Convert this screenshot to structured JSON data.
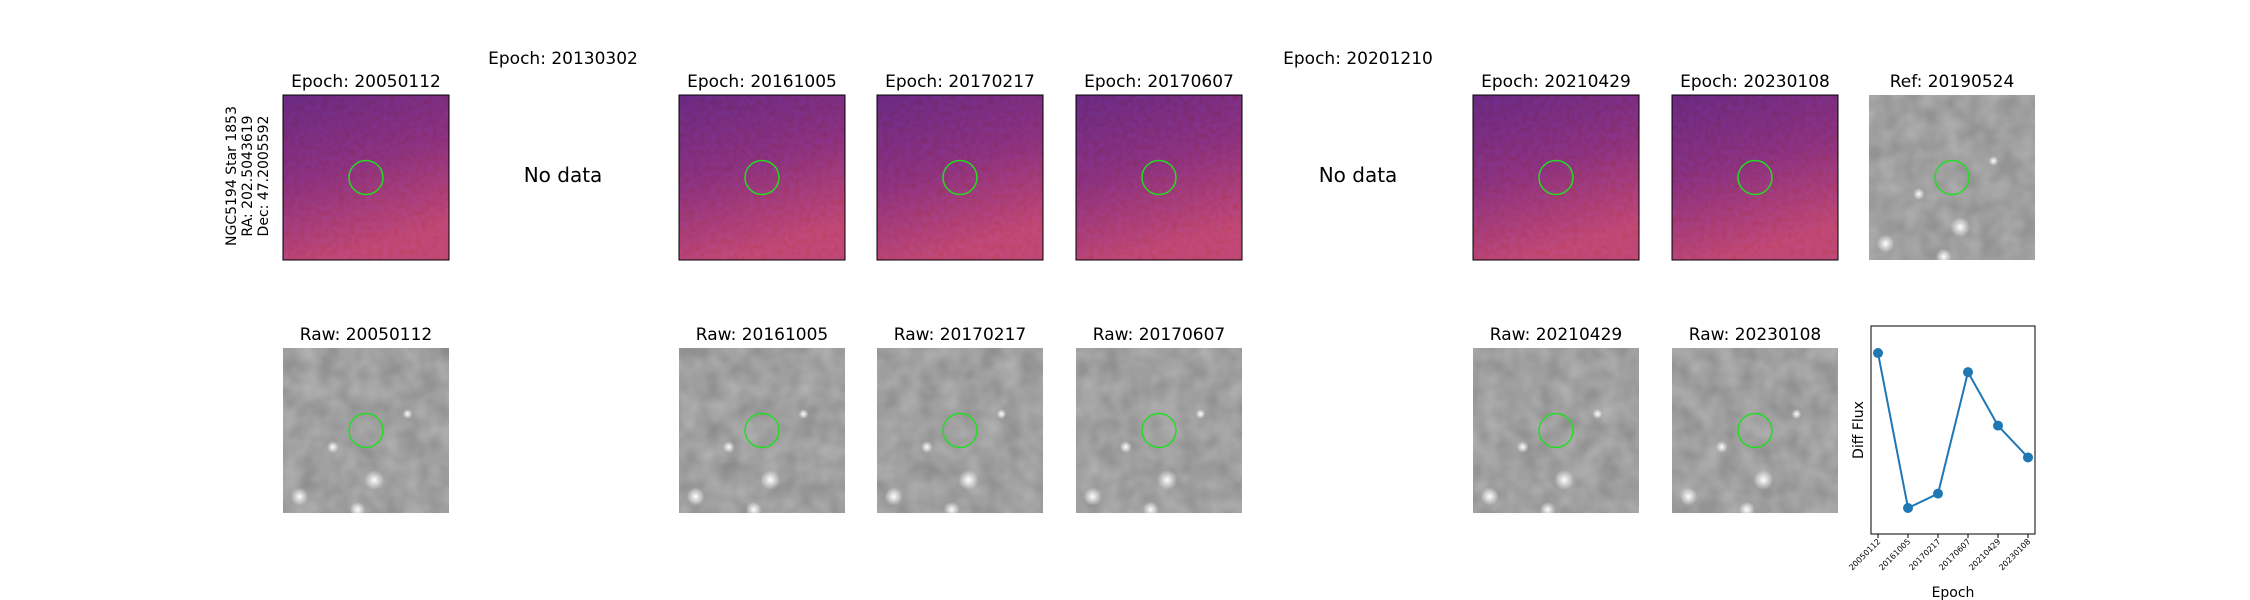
{
  "header": {
    "star_info": [
      "NGC5194 Star 1853",
      "RA: 202.5043619",
      "Dec: 47.2005592"
    ]
  },
  "columns": [
    {
      "diff": "Epoch: 20050112",
      "raw": "Raw: 20050112"
    },
    {
      "diff": "Epoch: 20130302",
      "nodata": "No data"
    },
    {
      "diff": "Epoch: 20161005",
      "raw": "Raw: 20161005"
    },
    {
      "diff": "Epoch: 20170217",
      "raw": "Raw: 20170217"
    },
    {
      "diff": "Epoch: 20170607",
      "raw": "Raw: 20170607"
    },
    {
      "diff": "Epoch: 20201210",
      "nodata": "No data"
    },
    {
      "diff": "Epoch: 20210429",
      "raw": "Raw: 20210429"
    },
    {
      "diff": "Epoch: 20230108",
      "raw": "Raw: 20230108"
    }
  ],
  "reference": "Ref: 20190524",
  "chart_data": {
    "type": "line",
    "xlabel": "Epoch",
    "ylabel": "Diff Flux",
    "categories": [
      "20050112",
      "20161005",
      "20170217",
      "20170607",
      "20210429",
      "20230108"
    ],
    "values": [
      0.87,
      0.125,
      0.194,
      0.778,
      0.521,
      0.368
    ],
    "color": "#1f77b4",
    "ylim": [
      0,
      1
    ]
  }
}
